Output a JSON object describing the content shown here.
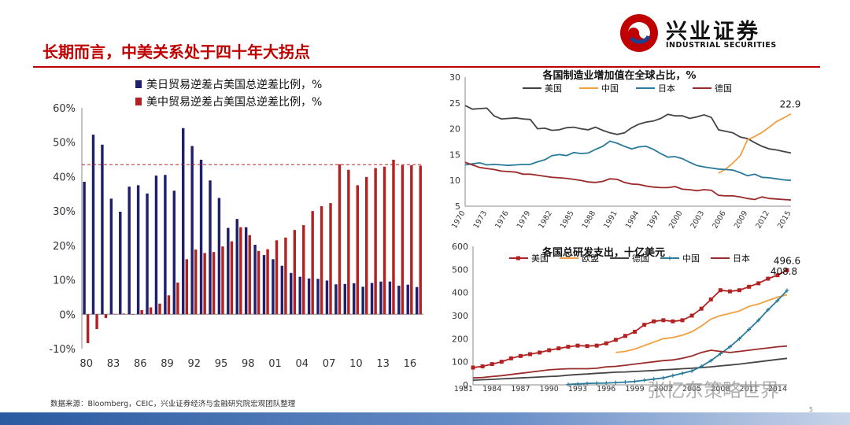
{
  "title": "长期而言，中美关系处于四十年大拐点",
  "logo": {
    "cn": "兴业证券",
    "en": "INDUSTRIAL SECURITIES"
  },
  "source": "数据来源：Bloomberg，CEIC，兴业证券经济与金融研究院宏观团队整理",
  "page_number": "5",
  "watermark": "张忆东策略世界",
  "colors": {
    "navy": "#1f1f6e",
    "red": "#b22222",
    "orange": "#f0a040",
    "teal": "#2a7a9a",
    "gray": "#444444",
    "darkred": "#9b2a2a",
    "brand": "#c00000"
  },
  "chart_data": [
    {
      "type": "bar",
      "title": "",
      "ytick_labels": [
        "-10%",
        "0%",
        "10%",
        "20%",
        "30%",
        "40%",
        "50%",
        "60%"
      ],
      "ylim": [
        -10,
        60
      ],
      "xtick_labels": [
        "80",
        "83",
        "86",
        "89",
        "92",
        "95",
        "98",
        "01",
        "04",
        "07",
        "10",
        "13",
        "16"
      ],
      "reference_line": 43.5,
      "categories": [
        1980,
        1981,
        1982,
        1983,
        1984,
        1985,
        1986,
        1987,
        1988,
        1989,
        1990,
        1991,
        1992,
        1993,
        1994,
        1995,
        1996,
        1997,
        1998,
        1999,
        2000,
        2001,
        2002,
        2003,
        2004,
        2005,
        2006,
        2007,
        2008,
        2009,
        2010,
        2011,
        2012,
        2013,
        2014,
        2015,
        2016,
        2017
      ],
      "series": [
        {
          "name": "美日贸易逆差占美国总逆差比例，%",
          "values": [
            38.5,
            52.2,
            49.3,
            33.6,
            29.8,
            37.1,
            37.5,
            35.1,
            40.3,
            40.5,
            35.9,
            54.1,
            48.9,
            44.9,
            38.9,
            33.8,
            25.1,
            27.7,
            25.3,
            20.2,
            17.2,
            16.0,
            14.1,
            12.0,
            10.9,
            10.4,
            10.3,
            9.8,
            8.7,
            8.8,
            9.0,
            8.0,
            9.1,
            9.5,
            9.5,
            8.3,
            8.6,
            7.9
          ]
        },
        {
          "name": "美中贸易逆差占美国总逆差比例，%",
          "values": [
            -8.4,
            -4.3,
            -1.1,
            0.1,
            0.2,
            0.0,
            1.2,
            2.0,
            3.1,
            5.5,
            9.2,
            16.0,
            18.8,
            17.8,
            18.1,
            19.7,
            21.2,
            25.3,
            23.0,
            18.4,
            18.9,
            21.5,
            22.3,
            24.5,
            25.9,
            30.0,
            31.4,
            32.3,
            43.6,
            42.0,
            37.5,
            39.9,
            42.5,
            42.9,
            44.9,
            43.3,
            43.3,
            43.2
          ]
        }
      ]
    },
    {
      "type": "line",
      "title": "各国制造业增加值在全球占比，%",
      "ytick_labels": [
        "5",
        "10",
        "15",
        "20",
        "25",
        "30"
      ],
      "ylim": [
        5,
        30
      ],
      "xtick_labels": [
        "1970",
        "1973",
        "1976",
        "1979",
        "1982",
        "1985",
        "1988",
        "1991",
        "1994",
        "1997",
        "2000",
        "2003",
        "2006",
        "2009",
        "2012",
        "2015"
      ],
      "annotations": [
        "22.9"
      ],
      "x_start": 1970,
      "series": [
        {
          "name": "美国",
          "values": [
            24.5,
            23.8,
            23.9,
            24.0,
            22.5,
            21.9,
            22.0,
            22.1,
            21.9,
            21.8,
            20.0,
            20.1,
            19.7,
            19.8,
            20.2,
            20.3,
            20.0,
            19.8,
            20.3,
            19.7,
            19.2,
            18.9,
            19.2,
            20.2,
            20.9,
            21.3,
            21.5,
            22.0,
            22.8,
            22.5,
            22.5,
            22.0,
            22.3,
            22.7,
            22.2,
            19.8,
            19.5,
            19.2,
            18.4,
            18.1,
            17.3,
            16.6,
            16.1,
            15.9,
            15.6,
            15.3
          ]
        },
        {
          "name": "中国",
          "values": [
            null,
            null,
            null,
            null,
            null,
            null,
            null,
            null,
            null,
            null,
            null,
            null,
            null,
            null,
            null,
            null,
            null,
            null,
            null,
            null,
            null,
            null,
            null,
            null,
            null,
            null,
            null,
            null,
            null,
            null,
            null,
            null,
            null,
            null,
            null,
            11.4,
            12.2,
            13.4,
            14.8,
            17.9,
            18.5,
            19.3,
            20.3,
            21.4,
            22.1,
            22.9
          ]
        },
        {
          "name": "日本",
          "values": [
            13.0,
            13.2,
            13.4,
            13.0,
            13.1,
            13.0,
            12.9,
            13.0,
            13.1,
            13.1,
            13.6,
            14.0,
            14.8,
            15.0,
            14.8,
            15.4,
            15.2,
            15.3,
            16.0,
            16.6,
            17.6,
            17.2,
            16.6,
            16.1,
            16.5,
            16.6,
            16.0,
            15.2,
            14.5,
            14.6,
            14.2,
            13.5,
            12.9,
            12.6,
            12.4,
            12.2,
            12.1,
            12.0,
            11.5,
            10.9,
            11.2,
            10.6,
            10.5,
            10.3,
            10.1,
            10.0
          ]
        },
        {
          "name": "德国",
          "values": [
            13.5,
            13.0,
            12.5,
            12.3,
            12.1,
            11.8,
            11.7,
            11.6,
            11.2,
            11.2,
            11.0,
            10.8,
            10.6,
            10.5,
            10.4,
            10.2,
            10.0,
            9.7,
            9.6,
            9.8,
            10.3,
            10.2,
            9.6,
            9.3,
            9.2,
            8.9,
            8.7,
            8.6,
            8.6,
            8.8,
            8.3,
            8.2,
            8.0,
            8.2,
            8.1,
            7.1,
            7.0,
            7.0,
            6.8,
            6.5,
            6.3,
            6.8,
            6.5,
            6.4,
            6.3,
            6.2
          ]
        }
      ]
    },
    {
      "type": "line",
      "title": "各国总研发支出，十亿美元",
      "ytick_labels": [
        "0",
        "100",
        "200",
        "300",
        "400",
        "500",
        "600"
      ],
      "ylim": [
        0,
        600
      ],
      "xtick_labels": [
        "1981",
        "1984",
        "1987",
        "1990",
        "1993",
        "1996",
        "1999",
        "2002",
        "2005",
        "2008",
        "2011",
        "2014"
      ],
      "annotations": [
        "496.6",
        "408.8"
      ],
      "x_start": 1981,
      "series": [
        {
          "name": "美国",
          "values": [
            75,
            80,
            90,
            100,
            115,
            125,
            133,
            140,
            150,
            158,
            165,
            170,
            168,
            170,
            180,
            195,
            212,
            230,
            260,
            275,
            280,
            275,
            280,
            300,
            330,
            370,
            410,
            405,
            410,
            425,
            440,
            460,
            475,
            496.6
          ]
        },
        {
          "name": "欧盟",
          "values": [
            null,
            null,
            null,
            null,
            null,
            null,
            null,
            null,
            null,
            null,
            null,
            null,
            null,
            null,
            null,
            140,
            145,
            155,
            170,
            185,
            200,
            205,
            215,
            230,
            255,
            285,
            300,
            310,
            320,
            340,
            350,
            365,
            380,
            390
          ]
        },
        {
          "name": "德国",
          "values": [
            20,
            22,
            24,
            26,
            28,
            30,
            32,
            34,
            36,
            38,
            42,
            45,
            47,
            50,
            52,
            55,
            56,
            58,
            60,
            62,
            65,
            67,
            70,
            72,
            75,
            78,
            82,
            86,
            90,
            95,
            100,
            105,
            110,
            115
          ]
        },
        {
          "name": "中国",
          "values": [
            null,
            null,
            null,
            null,
            null,
            null,
            null,
            null,
            null,
            null,
            2,
            4,
            6,
            7,
            8,
            10,
            12,
            15,
            20,
            25,
            30,
            40,
            50,
            60,
            80,
            105,
            135,
            165,
            200,
            240,
            280,
            325,
            365,
            408.8
          ]
        },
        {
          "name": "日本",
          "values": [
            30,
            32,
            36,
            40,
            45,
            50,
            55,
            60,
            65,
            68,
            70,
            70,
            70,
            72,
            78,
            80,
            85,
            90,
            95,
            100,
            105,
            108,
            115,
            125,
            140,
            150,
            145,
            140,
            145,
            150,
            155,
            160,
            165,
            168
          ]
        }
      ]
    }
  ]
}
